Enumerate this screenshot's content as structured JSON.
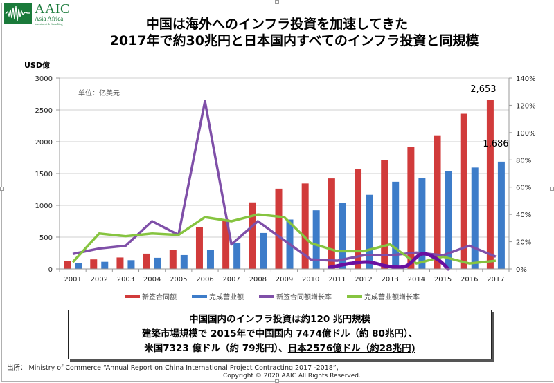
{
  "logo": {
    "name": "AAIC",
    "subtitle": "Asia Africa",
    "tagline": "Investment & Consulting",
    "color": "#1a7a3a"
  },
  "title": {
    "line1": "中国は海外へのインフラ投資を加速してきた",
    "line2": "2017年で約30兆円と日本国内すべてのインフラ投資と同規模"
  },
  "note": {
    "line1": "中国国内のインフラ投資は約120 兆円規模",
    "line2": "建築市場規模で 2015年で中国国内 7474億ドル（約 80兆円）、",
    "line3_a": "米国7323 億ドル（約 79兆円）、",
    "line3_b": "日本2576億ドル（約28兆円)"
  },
  "footer": {
    "source": "出所：  Ministry of Commerce “Annual Report on China International Project Contracting 2017     -2018”,",
    "copyright": "Copyright © 2020 AAIC All Rights Reserved."
  },
  "chart_data": {
    "type": "bar",
    "title": "中国は海外へのインフラ投資を加速してきた",
    "ylabel": "USD億",
    "inner_unit_label": "单位：亿美元",
    "ylim": [
      0,
      3000
    ],
    "y_ticks": [
      "0",
      "500",
      "1000",
      "1500",
      "2000",
      "2500",
      "3000"
    ],
    "y2lim": [
      0,
      140
    ],
    "y2_ticks": [
      "0%",
      "20%",
      "40%",
      "60%",
      "80%",
      "100%",
      "120%",
      "140%"
    ],
    "grid": true,
    "legend_position": "bottom",
    "categories": [
      "2001",
      "2002",
      "2003",
      "2004",
      "2005",
      "2006",
      "2007",
      "2008",
      "2009",
      "2010",
      "2011",
      "2012",
      "2013",
      "2014",
      "2015",
      "2016",
      "2017"
    ],
    "series": [
      {
        "name": "新签合同额",
        "type": "bar",
        "axis": "left",
        "color": "#d13b3b",
        "values": [
          130,
          150,
          180,
          240,
          300,
          660,
          780,
          1046,
          1262,
          1344,
          1423,
          1565,
          1716,
          1918,
          2101,
          2440,
          2653
        ]
      },
      {
        "name": "完成营业额",
        "type": "bar",
        "axis": "left",
        "color": "#3d7cc9",
        "values": [
          89,
          112,
          138,
          175,
          218,
          300,
          407,
          566,
          777,
          922,
          1034,
          1166,
          1371,
          1424,
          1541,
          1594,
          1686
        ]
      },
      {
        "name": "新签合同额增长率",
        "type": "line",
        "axis": "right",
        "unit": "%",
        "color": "#7f4fa8",
        "values": [
          11,
          15,
          17,
          35,
          25,
          123,
          18,
          35,
          21,
          7,
          6,
          10,
          10,
          12,
          10,
          17,
          9
        ]
      },
      {
        "name": "完成营业额增长率",
        "type": "line",
        "axis": "right",
        "unit": "%",
        "color": "#86c440",
        "values": [
          5,
          26,
          24,
          26,
          25,
          38,
          35,
          40,
          38,
          19,
          13,
          13,
          18,
          4,
          9,
          4,
          6
        ]
      }
    ],
    "annotation_curve": {
      "color": "#6a0fa0",
      "x": [
        9.7,
        10.5,
        11.2,
        11.9,
        12.6,
        13.2,
        13.8,
        14.2
      ],
      "values": [
        1,
        4,
        5,
        2,
        2,
        11,
        7,
        0
      ]
    },
    "data_labels": [
      {
        "series": "新签合同额",
        "category": "2017",
        "text": "2,653"
      },
      {
        "series": "完成营业额",
        "category": "2017",
        "text": "1,686"
      }
    ]
  }
}
